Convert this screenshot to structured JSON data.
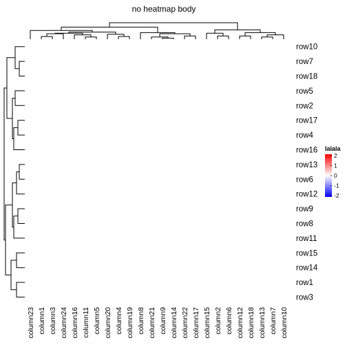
{
  "chart_data": {
    "type": "heatmap",
    "title": "no heatmap body",
    "rows": [
      "row10",
      "row7",
      "row18",
      "row5",
      "row2",
      "row17",
      "row4",
      "row16",
      "row13",
      "row6",
      "row12",
      "row9",
      "row8",
      "row11",
      "row15",
      "row14",
      "row1",
      "row3"
    ],
    "columns": [
      "column23",
      "column1",
      "column3",
      "column24",
      "column16",
      "column11",
      "column5",
      "column20",
      "column4",
      "column19",
      "column8",
      "column21",
      "column9",
      "column14",
      "column22",
      "column17",
      "column15",
      "column2",
      "column6",
      "column12",
      "column18",
      "column13",
      "column7",
      "column10"
    ],
    "legend": {
      "title": "lalala",
      "ticks": [
        2,
        1,
        0,
        -1,
        -2
      ],
      "range": [
        -2,
        2
      ],
      "colors": {
        "low": "#0000ff",
        "mid": "#ffffff",
        "high": "#ff0000"
      }
    },
    "heatmap_body_shown": false,
    "row_dendrogram": "left",
    "column_dendrogram": "top"
  }
}
